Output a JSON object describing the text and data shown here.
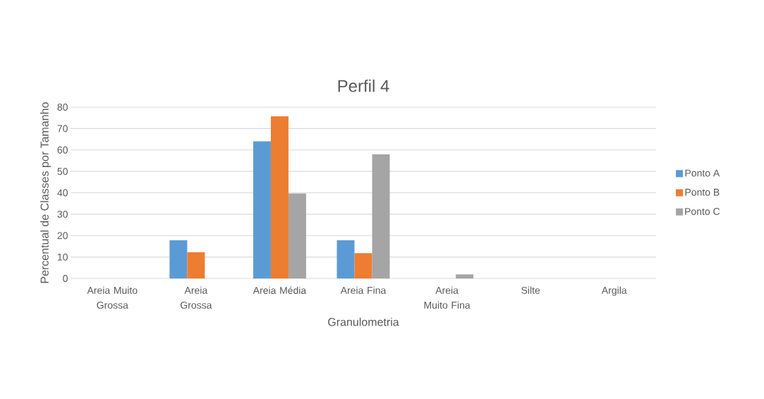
{
  "chart_data": {
    "type": "bar",
    "title": "Perfil 4",
    "xlabel": "Granulometria",
    "ylabel": "Percentual de Classes por Tamanho",
    "categories": [
      "Areia Muito Grossa",
      "Areia Grossa",
      "Areia Média",
      "Areia Fina",
      "Areia Muito Fina",
      "Silte",
      "Argila"
    ],
    "series": [
      {
        "name": "Ponto A",
        "color": "#5b9bd5",
        "values": [
          0,
          17.9,
          64.0,
          17.9,
          0,
          0,
          0
        ]
      },
      {
        "name": "Ponto B",
        "color": "#ed7d31",
        "values": [
          0,
          12.3,
          75.7,
          11.8,
          0,
          0,
          0
        ]
      },
      {
        "name": "Ponto C",
        "color": "#a5a5a5",
        "values": [
          0,
          0,
          39.7,
          58.0,
          1.9,
          0,
          0
        ]
      }
    ],
    "ylim": [
      0,
      80
    ],
    "yticks": [
      0,
      10,
      20,
      30,
      40,
      50,
      60,
      70,
      80
    ],
    "grid": "y",
    "legend": "right"
  }
}
